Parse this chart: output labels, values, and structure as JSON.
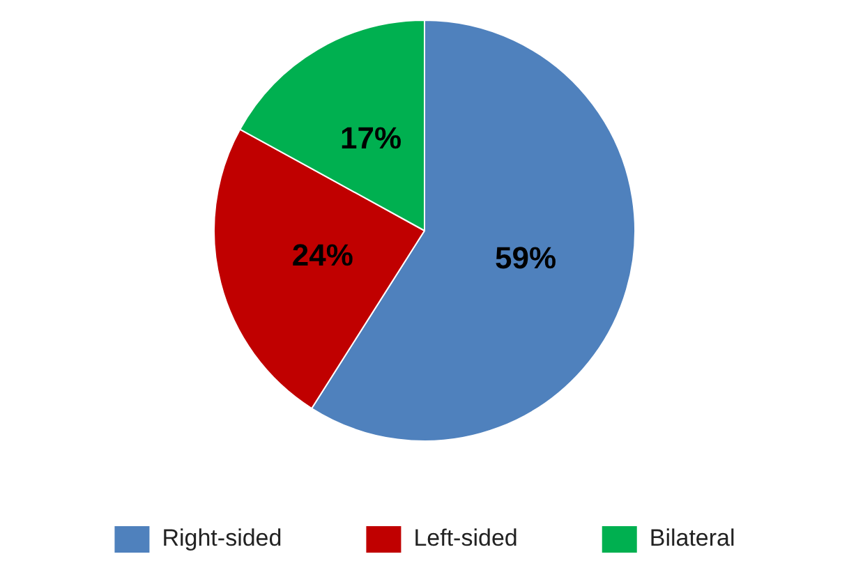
{
  "chart_data": {
    "type": "pie",
    "categories": [
      "Right-sided",
      "Left-sided",
      "Bilateral"
    ],
    "values": [
      59,
      24,
      17
    ],
    "colors": [
      "#4f81bd",
      "#c00000",
      "#00b050"
    ],
    "value_labels": [
      "59%",
      "24%",
      "17%"
    ],
    "legend": "bottom"
  }
}
